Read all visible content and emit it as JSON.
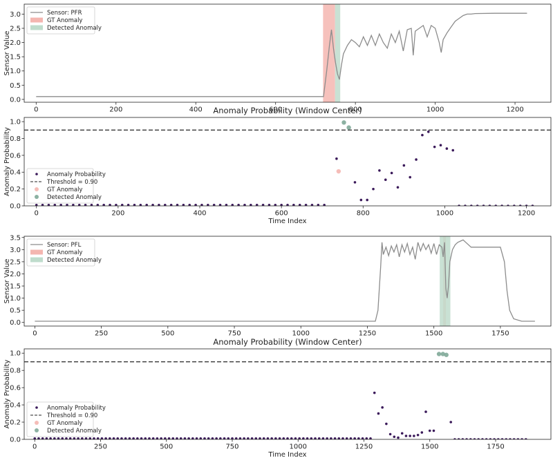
{
  "chart_data": [
    {
      "type": "line",
      "title": "",
      "xlabel": "",
      "ylabel": "Sensor Value",
      "xlim": [
        -30,
        1290
      ],
      "ylim": [
        -0.1,
        3.35
      ],
      "xticks": [
        0,
        200,
        400,
        600,
        800,
        1000,
        1200
      ],
      "yticks": [
        0.0,
        0.5,
        1.0,
        1.5,
        2.0,
        2.5,
        3.0
      ],
      "ytick_labels": [
        "0.0",
        "0.5",
        "1.0",
        "1.5",
        "2.0",
        "2.5",
        "3.0"
      ],
      "legend": {
        "placement": "top-left",
        "entries": [
          "Sensor: PFR",
          "GT Anomaly",
          "Detected Anomaly"
        ]
      },
      "series": [
        {
          "name": "Sensor: PFR",
          "color": "#8c8c8c",
          "x": [
            0,
            400,
            720,
            728,
            735,
            740,
            745,
            750,
            755,
            760,
            765,
            770,
            780,
            790,
            800,
            810,
            820,
            830,
            840,
            850,
            860,
            870,
            880,
            890,
            900,
            910,
            920,
            930,
            940,
            945,
            950,
            960,
            970,
            980,
            990,
            1000,
            1010,
            1015,
            1020,
            1030,
            1040,
            1050,
            1060,
            1070,
            1080,
            1090,
            1100,
            1150,
            1200,
            1230
          ],
          "y": [
            0.1,
            0.1,
            0.1,
            1.0,
            1.9,
            2.45,
            1.8,
            1.3,
            0.9,
            0.7,
            1.2,
            1.6,
            1.9,
            2.1,
            2.0,
            1.85,
            2.2,
            1.9,
            2.25,
            1.9,
            2.3,
            2.0,
            1.8,
            2.3,
            2.0,
            2.4,
            1.7,
            2.45,
            2.5,
            1.55,
            2.4,
            2.5,
            2.6,
            2.2,
            2.6,
            2.5,
            2.0,
            1.65,
            2.1,
            2.35,
            2.55,
            2.75,
            2.85,
            2.95,
            3.0,
            3.0,
            3.02,
            3.03,
            3.03,
            3.03
          ]
        }
      ],
      "regions": [
        {
          "name": "GT Anomaly",
          "color": "#f4b6b0",
          "x": [
            719,
            749
          ]
        },
        {
          "name": "Detected Anomaly",
          "color": "#bfdccc",
          "x": [
            749,
            762
          ]
        }
      ]
    },
    {
      "type": "scatter",
      "title": "Anomaly Probability (Window Center)",
      "xlabel": "Time Index",
      "ylabel": "Anomaly Probability",
      "xlim": [
        -30,
        1260
      ],
      "ylim": [
        0.0,
        1.05
      ],
      "xticks": [
        0,
        200,
        400,
        600,
        800,
        1000,
        1200
      ],
      "yticks": [
        0.0,
        0.2,
        0.4,
        0.6,
        0.8,
        1.0
      ],
      "ytick_labels": [
        "0.0",
        "0.2",
        "0.4",
        "0.6",
        "0.8",
        "1.0"
      ],
      "threshold": 0.9,
      "legend": {
        "placement": "bottom-left",
        "entries": [
          "Anomaly Probability",
          "Threshold = 0.90",
          "GT Anomaly",
          "Detected Anomaly"
        ]
      },
      "series": [
        {
          "name": "Anomaly Probability",
          "color": "#3b1a5a",
          "x": [
            0,
            15,
            30,
            45,
            60,
            75,
            90,
            105,
            120,
            135,
            150,
            165,
            180,
            195,
            210,
            225,
            240,
            255,
            270,
            285,
            300,
            315,
            330,
            345,
            360,
            375,
            390,
            405,
            420,
            435,
            450,
            465,
            480,
            495,
            510,
            525,
            540,
            555,
            570,
            585,
            600,
            615,
            630,
            645,
            660,
            675,
            690,
            705,
            735,
            780,
            795,
            810,
            825,
            840,
            855,
            870,
            885,
            900,
            915,
            930,
            945,
            960,
            975,
            990,
            1005,
            1020,
            1035,
            1050,
            1065,
            1080,
            1095,
            1110,
            1125,
            1140,
            1155,
            1170,
            1185,
            1200,
            1215
          ],
          "y": [
            0.01,
            0.01,
            0.01,
            0.01,
            0.01,
            0.01,
            0.01,
            0.01,
            0.01,
            0.01,
            0.01,
            0.01,
            0.01,
            0.01,
            0.01,
            0.01,
            0.01,
            0.01,
            0.01,
            0.01,
            0.01,
            0.01,
            0.01,
            0.01,
            0.01,
            0.01,
            0.01,
            0.01,
            0.01,
            0.01,
            0.01,
            0.01,
            0.01,
            0.01,
            0.01,
            0.01,
            0.01,
            0.01,
            0.01,
            0.01,
            0.01,
            0.01,
            0.01,
            0.01,
            0.01,
            0.01,
            0.01,
            0.01,
            0.56,
            0.28,
            0.07,
            0.07,
            0.2,
            0.42,
            0.31,
            0.39,
            0.22,
            0.48,
            0.34,
            0.55,
            0.84,
            0.88,
            0.7,
            0.72,
            0.68,
            0.66,
            0.0,
            0.0,
            0.0,
            0.0,
            0.0,
            0.0,
            0.0,
            0.0,
            0.0,
            0.0,
            0.0,
            0.0,
            0.0
          ]
        },
        {
          "name": "GT Anomaly",
          "color": "#f4b6b0",
          "x": [
            740
          ],
          "y": [
            0.41
          ]
        },
        {
          "name": "Detected Anomaly",
          "color": "#7fa898",
          "x": [
            753,
            765
          ],
          "y": [
            0.99,
            0.93
          ]
        }
      ]
    },
    {
      "type": "line",
      "title": "",
      "xlabel": "",
      "ylabel": "Sensor Value",
      "xlim": [
        -40,
        1940
      ],
      "ylim": [
        -0.15,
        3.55
      ],
      "xticks": [
        0,
        250,
        500,
        750,
        1000,
        1250,
        1500,
        1750
      ],
      "yticks": [
        0.0,
        0.5,
        1.0,
        1.5,
        2.0,
        2.5,
        3.0,
        3.5
      ],
      "ytick_labels": [
        "0.0",
        "0.5",
        "1.0",
        "1.5",
        "2.0",
        "2.5",
        "3.0",
        "3.5"
      ],
      "legend": {
        "placement": "top-left",
        "entries": [
          "Sensor: PFL",
          "GT Anomaly",
          "Detected Anomaly"
        ]
      },
      "series": [
        {
          "name": "Sensor: PFL",
          "color": "#8c8c8c",
          "x": [
            0,
            1000,
            1280,
            1290,
            1300,
            1305,
            1310,
            1320,
            1330,
            1340,
            1350,
            1360,
            1370,
            1380,
            1390,
            1400,
            1410,
            1420,
            1430,
            1440,
            1450,
            1460,
            1470,
            1480,
            1490,
            1500,
            1510,
            1520,
            1530,
            1535,
            1540,
            1545,
            1550,
            1555,
            1560,
            1570,
            1580,
            1590,
            1600,
            1610,
            1620,
            1640,
            1660,
            1700,
            1750,
            1765,
            1775,
            1785,
            1800,
            1830,
            1880
          ],
          "y": [
            0.05,
            0.05,
            0.05,
            0.5,
            2.3,
            3.3,
            2.8,
            3.1,
            2.75,
            3.15,
            2.9,
            3.2,
            2.7,
            3.2,
            2.9,
            3.25,
            2.8,
            3.1,
            2.6,
            3.3,
            2.95,
            3.25,
            3.0,
            3.2,
            2.85,
            3.25,
            2.8,
            3.2,
            3.1,
            2.7,
            3.3,
            1.4,
            1.0,
            1.5,
            2.5,
            3.0,
            3.2,
            3.3,
            3.35,
            3.4,
            3.3,
            3.1,
            3.1,
            3.1,
            3.1,
            2.5,
            1.3,
            0.5,
            0.15,
            0.05,
            0.05
          ]
        }
      ],
      "regions": [
        {
          "name": "GT Anomaly",
          "color": "#f4b6b0",
          "x": [
            1535,
            1545
          ]
        },
        {
          "name": "Detected Anomaly",
          "color": "#bfdccc",
          "x": [
            1522,
            1562
          ]
        }
      ]
    },
    {
      "type": "scatter",
      "title": "Anomaly Probability (Window Center)",
      "xlabel": "Time Index",
      "ylabel": "Anomaly Probability",
      "xlim": [
        -40,
        1960
      ],
      "ylim": [
        0.0,
        1.05
      ],
      "xticks": [
        0,
        250,
        500,
        750,
        1000,
        1250,
        1500,
        1750
      ],
      "yticks": [
        0.0,
        0.2,
        0.4,
        0.6,
        0.8,
        1.0
      ],
      "ytick_labels": [
        "0.0",
        "0.2",
        "0.4",
        "0.6",
        "0.8",
        "1.0"
      ],
      "threshold": 0.9,
      "legend": {
        "placement": "bottom-left",
        "entries": [
          "Anomaly Probability",
          "Threshold = 0.90",
          "GT Anomaly",
          "Detected Anomaly"
        ]
      },
      "series": [
        {
          "name": "Anomaly Probability",
          "color": "#3b1a5a",
          "x": [
            0,
            15,
            30,
            45,
            60,
            75,
            90,
            105,
            120,
            135,
            150,
            165,
            180,
            195,
            210,
            225,
            240,
            255,
            270,
            285,
            300,
            315,
            330,
            345,
            360,
            375,
            390,
            405,
            420,
            435,
            450,
            465,
            480,
            495,
            510,
            525,
            540,
            555,
            570,
            585,
            600,
            615,
            630,
            645,
            660,
            675,
            690,
            705,
            720,
            735,
            750,
            765,
            780,
            795,
            810,
            825,
            840,
            855,
            870,
            885,
            900,
            915,
            930,
            945,
            960,
            975,
            990,
            1005,
            1020,
            1035,
            1050,
            1065,
            1080,
            1095,
            1110,
            1125,
            1140,
            1155,
            1170,
            1185,
            1200,
            1215,
            1230,
            1245,
            1260,
            1275,
            1290,
            1305,
            1320,
            1335,
            1350,
            1365,
            1380,
            1395,
            1410,
            1425,
            1440,
            1455,
            1470,
            1485,
            1500,
            1515,
            1580,
            1595,
            1610,
            1625,
            1640,
            1655,
            1670,
            1685,
            1700,
            1715,
            1730,
            1745,
            1760,
            1775,
            1790,
            1805,
            1820,
            1835,
            1850,
            1865
          ],
          "y": [
            0.01,
            0.01,
            0.01,
            0.01,
            0.01,
            0.01,
            0.01,
            0.01,
            0.01,
            0.01,
            0.01,
            0.01,
            0.01,
            0.01,
            0.01,
            0.01,
            0.01,
            0.01,
            0.01,
            0.01,
            0.01,
            0.01,
            0.01,
            0.01,
            0.01,
            0.01,
            0.01,
            0.01,
            0.01,
            0.01,
            0.01,
            0.01,
            0.01,
            0.01,
            0.01,
            0.01,
            0.01,
            0.01,
            0.01,
            0.01,
            0.01,
            0.01,
            0.01,
            0.01,
            0.01,
            0.01,
            0.01,
            0.01,
            0.01,
            0.01,
            0.01,
            0.01,
            0.01,
            0.01,
            0.01,
            0.01,
            0.01,
            0.01,
            0.01,
            0.01,
            0.01,
            0.01,
            0.01,
            0.01,
            0.01,
            0.01,
            0.01,
            0.01,
            0.01,
            0.01,
            0.01,
            0.01,
            0.01,
            0.01,
            0.01,
            0.01,
            0.01,
            0.01,
            0.01,
            0.01,
            0.01,
            0.01,
            0.01,
            0.01,
            0.01,
            0.01,
            0.54,
            0.3,
            0.37,
            0.18,
            0.06,
            0.03,
            0.02,
            0.07,
            0.04,
            0.04,
            0.04,
            0.05,
            0.08,
            0.32,
            0.1,
            0.1,
            0.2,
            0.0,
            0.0,
            0.0,
            0.0,
            0.0,
            0.0,
            0.0,
            0.0,
            0.0,
            0.0,
            0.0,
            0.0,
            0.0,
            0.0,
            0.0,
            0.0,
            0.0,
            0.0,
            0.0
          ]
        },
        {
          "name": "GT Anomaly",
          "color": "#f4b6b0",
          "x": [],
          "y": []
        },
        {
          "name": "Detected Anomaly",
          "color": "#7fa898",
          "x": [
            1535,
            1550,
            1563
          ],
          "y": [
            0.99,
            0.99,
            0.98
          ]
        }
      ]
    }
  ]
}
